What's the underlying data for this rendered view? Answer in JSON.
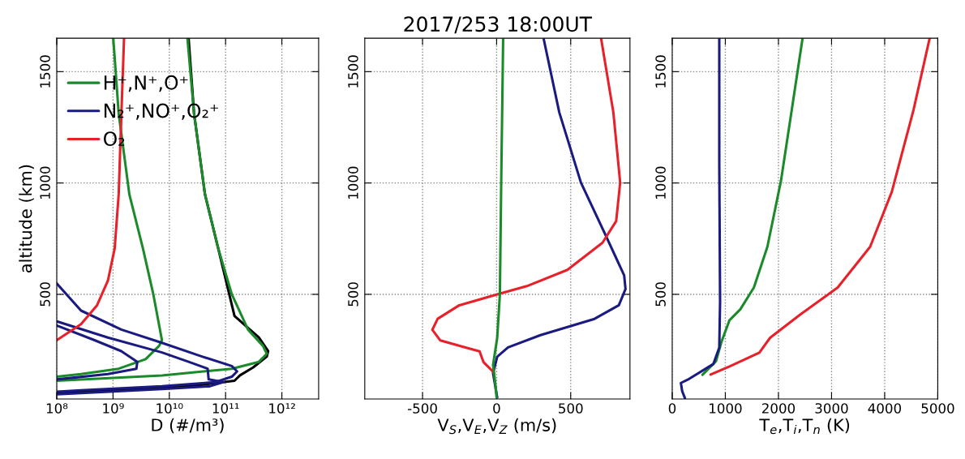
{
  "chart_data": [
    {
      "type": "line",
      "xlabel": "D (#/m³)",
      "ylabel": "altitude (km)",
      "log": "x",
      "grid": true,
      "legend": "top left",
      "xlim": [
        100000000.0,
        4500000000000.0
      ],
      "xticks": [
        {
          "value": 100000000.0,
          "label": "10⁸"
        },
        {
          "value": 1000000000.0,
          "label": "10⁹"
        },
        {
          "value": 10000000000.0,
          "label": "10¹⁰"
        },
        {
          "value": 100000000000.0,
          "label": "10¹¹"
        },
        {
          "value": 1000000000000.0,
          "label": "10¹²"
        }
      ],
      "ylim": [
        30,
        1650
      ],
      "yticks": [
        500,
        1000,
        1500
      ],
      "series": [
        {
          "color": "#000000",
          "x": [
            22000000000.0,
            27500000000.0,
            43000000000.0,
            74000000000.0,
            144000000000.0,
            390000000000.0,
            570000000000.0,
            540000000000.0,
            310000000000.0,
            180000000000.0,
            144000000000.0,
            22000000000.0,
            810000000.0,
            100000000.0
          ],
          "values": [
            1650,
            1313,
            949,
            706,
            403,
            306,
            245,
            221,
            172,
            136,
            112,
            87,
            69,
            57
          ]
        },
        {
          "name": "H⁺,N⁺,O⁺",
          "color": "#1a8a2a",
          "x": [
            1010000000.0,
            1260000000.0,
            1950000000.0,
            3400000000.0,
            5200000000.0,
            7400000000.0,
            6600000000.0,
            3800000000.0,
            1260000000.0,
            270000000.0,
            100000000.0
          ],
          "values": [
            1650,
            1313,
            949,
            706,
            500,
            294,
            269,
            209,
            166,
            142,
            130
          ]
        },
        {
          "color": "#1a8a2a",
          "x": [
            21000000000.0,
            27500000000.0,
            43000000000.0,
            74000000000.0,
            129000000000.0,
            250000000000.0,
            460000000000.0,
            540000000000.0,
            390000000000.0,
            129000000000.0,
            7400000000.0,
            100000000.0
          ],
          "values": [
            1650,
            1313,
            949,
            706,
            500,
            342,
            269,
            233,
            197,
            166,
            136,
            112
          ]
        },
        {
          "name": "N₂⁺,NO⁺,O₂⁺",
          "color": "#1a1a80",
          "x": [
            100000000.0,
            270000000.0,
            1400000000.0,
            7400000000.0,
            38000000000.0,
            129000000000.0,
            160000000000.0,
            129000000000.0,
            66000000000.0,
            7400000000.0,
            270000000.0,
            100000000.0
          ],
          "values": [
            549,
            427,
            342,
            282,
            221,
            178,
            154,
            130,
            106,
            87,
            69,
            63
          ]
        },
        {
          "color": "#1a1a80",
          "x": [
            100000000.0,
            810000000.0,
            7400000000.0,
            22000000000.0,
            48000000000.0,
            50000000000.0,
            93000000000.0,
            52000000000.0,
            7400000000.0,
            100000000.0
          ],
          "values": [
            379,
            306,
            239,
            197,
            166,
            118,
            106,
            87,
            75,
            51
          ]
        },
        {
          "color": "#1a1a80",
          "x": [
            100000000.0,
            470000000.0,
            1400000000.0,
            2700000000.0,
            2600000000.0,
            810000000.0,
            100000000.0
          ],
          "values": [
            360,
            294,
            245,
            197,
            166,
            142,
            118
          ]
        },
        {
          "name": "O₂",
          "color": "#e8202a",
          "x": [
            1570000000.0,
            1410000000.0,
            1260000000.0,
            1070000000.0,
            810000000.0,
            520000000.0,
            270000000.0,
            100000000.0
          ],
          "values": [
            1650,
            1313,
            949,
            706,
            561,
            451,
            366,
            294
          ]
        }
      ]
    },
    {
      "type": "line",
      "title": "2017/253 18:00UT",
      "xlabel": "V$_{S}$,V$_{E}$,V$_{Z}$ (m/s)",
      "grid": true,
      "xlim": [
        -890,
        900
      ],
      "xticks": [
        {
          "value": -500,
          "label": "-500"
        },
        0,
        500
      ],
      "ylim": [
        30,
        1650
      ],
      "yticks": [
        500,
        1000,
        1500
      ],
      "series": [
        {
          "color": "#1a1a80",
          "x": [
            318,
            423,
            569,
            734,
            861,
            870,
            825,
            661,
            296,
            77,
            4,
            -24,
            4
          ],
          "values": [
            1646,
            1317,
            1002,
            768,
            585,
            524,
            451,
            390,
            317,
            262,
            220,
            146,
            37
          ]
        },
        {
          "color": "#e8202a",
          "x": [
            706,
            788,
            834,
            807,
            715,
            478,
            204,
            4,
            -252,
            -398,
            -434,
            -380,
            -215,
            -115,
            -88,
            -33,
            -18
          ],
          "values": [
            1646,
            1317,
            1002,
            829,
            732,
            610,
            537,
            500,
            451,
            390,
            341,
            293,
            262,
            244,
            195,
            159,
            146
          ]
        },
        {
          "color": "#1a8a2a",
          "x": [
            44,
            31,
            22,
            4,
            -24,
            -11,
            0
          ],
          "values": [
            1646,
            1003,
            500,
            305,
            183,
            110,
            37
          ]
        }
      ]
    },
    {
      "type": "line",
      "xlabel": "T$_{e}$,T$_{i}$,T$_{n}$ (K)",
      "grid": true,
      "xlim": [
        0,
        5000
      ],
      "xticks": [
        0,
        1000,
        2000,
        3000,
        4000,
        5000
      ],
      "ylim": [
        30,
        1650
      ],
      "yticks": [
        500,
        1000,
        1500
      ],
      "series": [
        {
          "color": "#e8202a",
          "x": [
            4847,
            4542,
            4134,
            3727,
            3116,
            2403,
            1843,
            1640,
            1079,
            723
          ],
          "values": [
            1650,
            1327,
            960,
            714,
            531,
            408,
            305,
            238,
            176,
            140
          ]
        },
        {
          "color": "#1a8a2a",
          "x": [
            2454,
            2250,
            2047,
            1792,
            1538,
            1283,
            1079,
            926,
            825,
            570
          ],
          "values": [
            1650,
            1327,
            1009,
            714,
            531,
            433,
            384,
            286,
            200,
            139
          ]
        },
        {
          "color": "#1a1a80",
          "x": [
            886,
            886,
            901,
            886,
            774,
            316,
            163,
            188,
            239
          ],
          "values": [
            1650,
            1082,
            469,
            261,
            187,
            120,
            102,
            65,
            34
          ]
        }
      ]
    }
  ]
}
